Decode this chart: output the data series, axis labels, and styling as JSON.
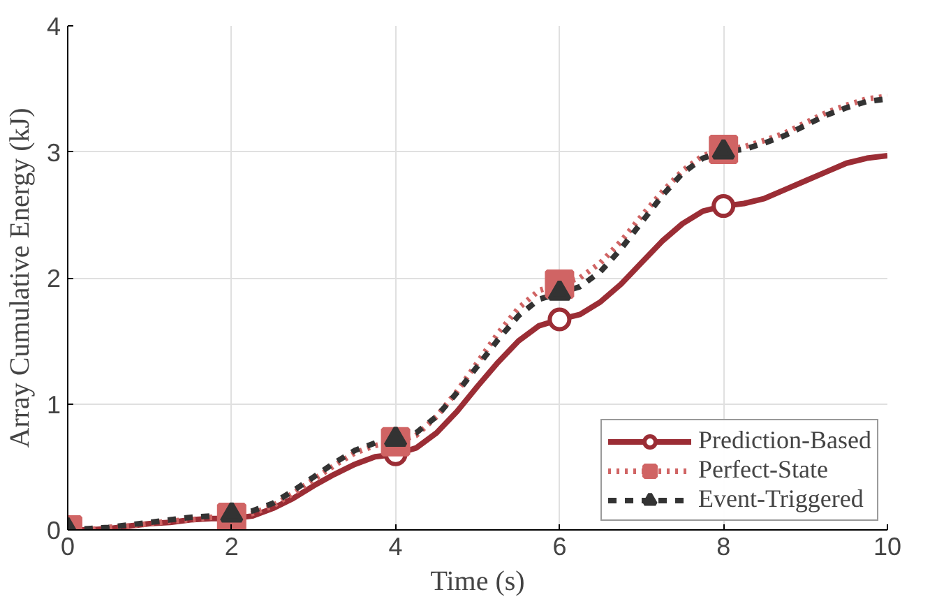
{
  "chart_data": {
    "type": "line",
    "xlabel": "Time (s)",
    "ylabel": "Array Cumulative Energy (kJ)",
    "x": [
      0,
      0.25,
      0.5,
      0.75,
      1,
      1.25,
      1.5,
      1.75,
      2,
      2.25,
      2.5,
      2.75,
      3,
      3.25,
      3.5,
      3.75,
      4,
      4.25,
      4.5,
      4.75,
      5,
      5.25,
      5.5,
      5.75,
      6,
      6.25,
      6.5,
      6.75,
      7,
      7.25,
      7.5,
      7.75,
      8,
      8.25,
      8.5,
      8.75,
      9,
      9.25,
      9.5,
      9.75,
      10
    ],
    "series": [
      {
        "name": "Prediction-Based",
        "color": "#9b2d35",
        "values": [
          0,
          0,
          0.01,
          0.03,
          0.05,
          0.06,
          0.08,
          0.09,
          0.09,
          0.11,
          0.17,
          0.25,
          0.35,
          0.44,
          0.52,
          0.58,
          0.6,
          0.65,
          0.77,
          0.94,
          1.14,
          1.33,
          1.5,
          1.62,
          1.67,
          1.71,
          1.81,
          1.95,
          2.12,
          2.29,
          2.43,
          2.53,
          2.57,
          2.59,
          2.63,
          2.7,
          2.77,
          2.84,
          2.91,
          2.95,
          2.97
        ],
        "line_style": "solid"
      },
      {
        "name": "Perfect-State",
        "color": "#d06464",
        "values": [
          0,
          0,
          0.02,
          0.03,
          0.05,
          0.07,
          0.08,
          0.1,
          0.1,
          0.13,
          0.19,
          0.29,
          0.4,
          0.51,
          0.61,
          0.67,
          0.7,
          0.75,
          0.9,
          1.1,
          1.33,
          1.56,
          1.76,
          1.9,
          1.95,
          2.0,
          2.12,
          2.29,
          2.49,
          2.68,
          2.85,
          2.97,
          3.02,
          3.04,
          3.09,
          3.15,
          3.23,
          3.31,
          3.37,
          3.42,
          3.44
        ],
        "line_style": "dotted"
      },
      {
        "name": "Event-Triggered",
        "color": "#333333",
        "values": [
          0,
          0.01,
          0.02,
          0.04,
          0.06,
          0.08,
          0.1,
          0.11,
          0.12,
          0.15,
          0.21,
          0.31,
          0.42,
          0.53,
          0.63,
          0.69,
          0.72,
          0.77,
          0.9,
          1.09,
          1.3,
          1.51,
          1.7,
          1.83,
          1.88,
          1.93,
          2.05,
          2.23,
          2.44,
          2.65,
          2.83,
          2.95,
          3.0,
          3.02,
          3.07,
          3.13,
          3.21,
          3.29,
          3.35,
          3.4,
          3.42
        ],
        "line_style": "dashed"
      },
      {
        "type": "scatter",
        "color": "#9b2d35",
        "x": [
          4,
          6,
          8
        ],
        "values": [
          0.6,
          1.67,
          2.57
        ],
        "marker": "circle"
      },
      {
        "type": "scatter",
        "color": "#d06464",
        "x": [
          0,
          2,
          4,
          6,
          8
        ],
        "values": [
          0,
          0.1,
          0.7,
          1.95,
          3.02
        ],
        "marker": "square"
      },
      {
        "type": "scatter",
        "color": "#333333",
        "x": [
          0,
          2,
          4,
          6,
          8
        ],
        "values": [
          0,
          0.12,
          0.72,
          1.88,
          3.0
        ],
        "marker": "triangle"
      }
    ],
    "xlim": [
      0,
      10
    ],
    "ylim": [
      0,
      4
    ],
    "xticks": [
      0,
      2,
      4,
      6,
      8,
      10
    ],
    "yticks": [
      0,
      1,
      2,
      3,
      4
    ],
    "grid": true,
    "legend": "bottom right"
  }
}
